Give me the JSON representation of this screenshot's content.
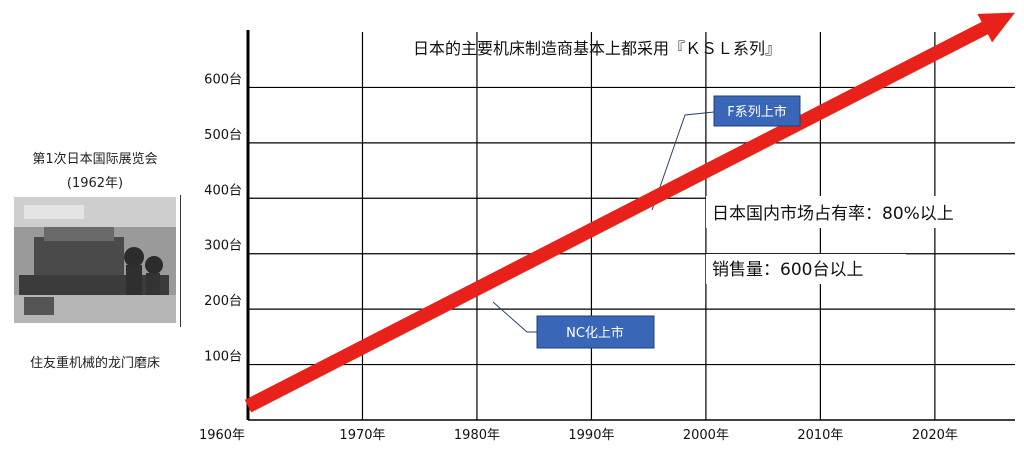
{
  "exhibition": {
    "title": "第1次日本国际展览会",
    "year": "(1962年)",
    "caption": "住友重机械的龙门磨床"
  },
  "chart_data": {
    "type": "line",
    "title": "日本的主要机床制造商基本上都采用『ＫＳＬ系列』",
    "x_ticks": [
      "1960年",
      "1970年",
      "1980年",
      "1990年",
      "2000年",
      "2010年",
      "2020年"
    ],
    "y_ticks": [
      "100台",
      "200台",
      "300台",
      "400台",
      "500台",
      "600台"
    ],
    "xlim": [
      1960,
      2027
    ],
    "ylim": [
      0,
      700
    ],
    "grid": true,
    "series": [
      {
        "values": [
          [
            1960,
            25
          ],
          [
            2027,
            735
          ]
        ],
        "color": "#e8221b",
        "style": "arrow"
      }
    ],
    "annotations": {
      "f_series": "F系列上市",
      "nc": "NC化上市",
      "market_share": "日本国内市场占有率：80%以上",
      "sales": "销售量：600台以上"
    },
    "box_color": "#3a66b8",
    "grid_color": "#000000"
  }
}
